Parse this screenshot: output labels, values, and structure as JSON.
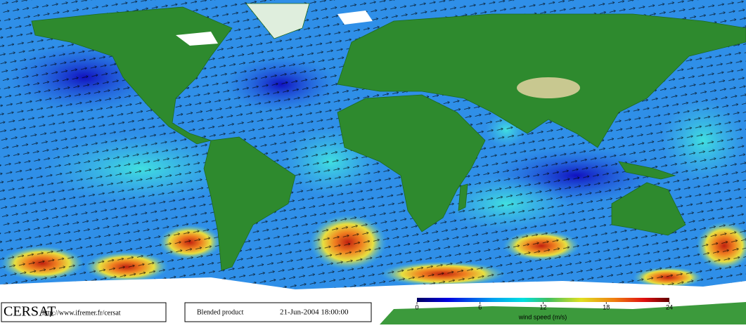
{
  "footer": {
    "logo": "CERSAT",
    "url": "http://www.ifremer.fr/cersat",
    "product": "Blended product",
    "date": "21-Jun-2004 18:00:00"
  },
  "colorbar": {
    "label": "wind speed (m/s)",
    "lim": [
      0,
      24
    ],
    "ticks": [
      0,
      6,
      12,
      18,
      24
    ]
  }
}
